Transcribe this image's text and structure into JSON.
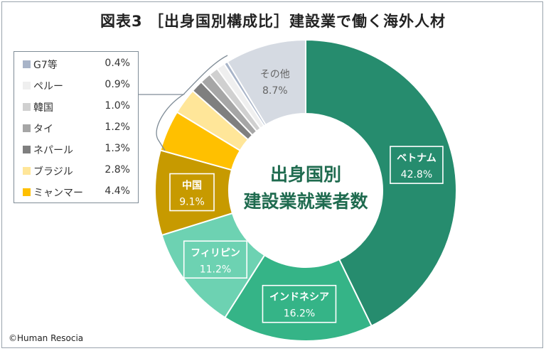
{
  "title": "図表3 ［出身国別構成比］建設業で働く海外人材",
  "center_label": [
    "出身国別",
    "建設業就業者数"
  ],
  "footer": "©Human Resocia",
  "chart_data": {
    "type": "pie",
    "donut": true,
    "slices": [
      {
        "name": "ベトナム",
        "value": 42.8,
        "label": "42.8%",
        "color": "#268c6e"
      },
      {
        "name": "インドネシア",
        "value": 16.2,
        "label": "16.2%",
        "color": "#35b487"
      },
      {
        "name": "フィリピン",
        "value": 11.2,
        "label": "11.2%",
        "color": "#6dd2b2"
      },
      {
        "name": "中国",
        "value": 9.1,
        "label": "9.1%",
        "color": "#c79a00"
      },
      {
        "name": "ミャンマー",
        "value": 4.4,
        "label": "4.4%",
        "color": "#ffc000"
      },
      {
        "name": "ブラジル",
        "value": 2.8,
        "label": "2.8%",
        "color": "#ffe699"
      },
      {
        "name": "ネパール",
        "value": 1.3,
        "label": "1.3%",
        "color": "#7f7f7f"
      },
      {
        "name": "タイ",
        "value": 1.2,
        "label": "1.2%",
        "color": "#a6a6a6"
      },
      {
        "name": "韓国",
        "value": 1.0,
        "label": "1.0%",
        "color": "#d0d0d0"
      },
      {
        "name": "ペルー",
        "value": 0.9,
        "label": "0.9%",
        "color": "#efefef"
      },
      {
        "name": "G7等",
        "value": 0.4,
        "label": "0.4%",
        "color": "#a8b4c8"
      },
      {
        "name": "その他",
        "value": 8.7,
        "label": "8.7%",
        "color": "#d5dae2"
      }
    ],
    "legend": {
      "placement": "left",
      "entries": [
        {
          "name": "G7等",
          "label": "0.4%",
          "color": "#a8b4c8"
        },
        {
          "name": "ペルー",
          "label": "0.9%",
          "color": "#efefef"
        },
        {
          "name": "韓国",
          "label": "1.0%",
          "color": "#d0d0d0"
        },
        {
          "name": "タイ",
          "label": "1.2%",
          "color": "#a6a6a6"
        },
        {
          "name": "ネパール",
          "label": "1.3%",
          "color": "#7f7f7f"
        },
        {
          "name": "ブラジル",
          "label": "2.8%",
          "color": "#ffe699"
        },
        {
          "name": "ミャンマー",
          "label": "4.4%",
          "color": "#ffc000"
        }
      ]
    }
  }
}
